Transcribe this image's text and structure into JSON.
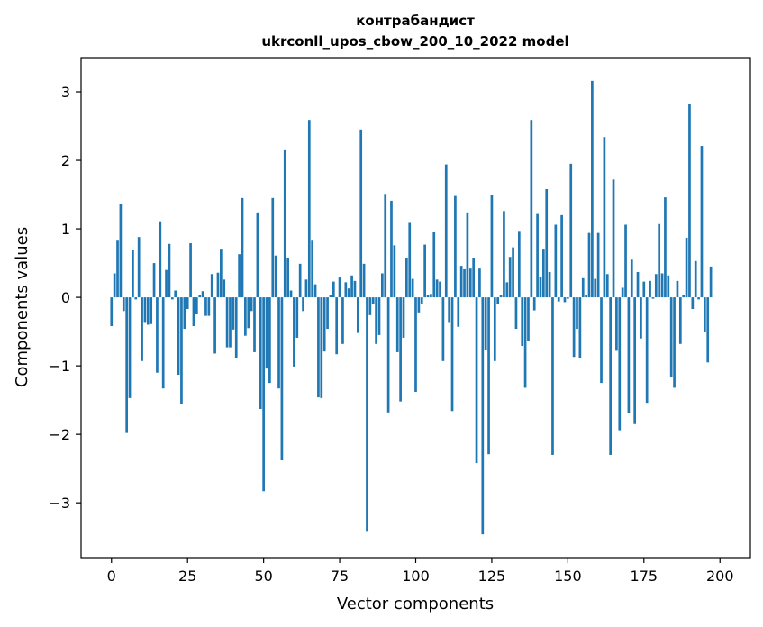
{
  "chart_data": {
    "type": "bar",
    "title": "контрабандист",
    "subtitle": "ukrconll_upos_cbow_200_10_2022 model",
    "xlabel": "Vector components",
    "ylabel": "Components values",
    "xlim": [
      -10,
      210
    ],
    "ylim": [
      -3.8,
      3.5
    ],
    "xticks": [
      0,
      25,
      50,
      75,
      100,
      125,
      150,
      175,
      200
    ],
    "yticks": [
      -3,
      -2,
      -1,
      0,
      1,
      2,
      3
    ],
    "ytick_labels": [
      "−3",
      "−2",
      "−1",
      "0",
      "1",
      "2",
      "3"
    ],
    "grid": false,
    "bar_color": "#1f77b4",
    "values": [
      -0.42,
      0.35,
      0.84,
      1.36,
      -0.2,
      -1.98,
      -1.47,
      0.69,
      -0.03,
      0.88,
      -0.93,
      -0.36,
      -0.4,
      -0.39,
      0.5,
      -1.1,
      1.11,
      -1.33,
      0.4,
      0.78,
      -0.03,
      0.1,
      -1.13,
      -1.56,
      -0.46,
      -0.17,
      0.79,
      -0.42,
      -0.24,
      0.03,
      0.09,
      -0.27,
      -0.27,
      0.34,
      -0.82,
      0.36,
      0.71,
      0.26,
      -0.73,
      -0.73,
      -0.47,
      -0.88,
      0.63,
      1.45,
      -0.56,
      -0.45,
      -0.2,
      -0.8,
      1.24,
      -1.63,
      -2.83,
      -1.04,
      -1.25,
      1.45,
      0.61,
      -1.33,
      -2.38,
      2.16,
      0.58,
      0.1,
      -1.01,
      -0.59,
      0.49,
      -0.2,
      0.26,
      2.59,
      0.84,
      0.19,
      -1.46,
      -1.47,
      -0.79,
      -0.46,
      0.03,
      0.23,
      -0.83,
      0.29,
      -0.68,
      0.22,
      0.13,
      0.32,
      0.24,
      -0.52,
      2.45,
      0.49,
      -3.41,
      -0.26,
      -0.1,
      -0.68,
      -0.55,
      0.35,
      1.51,
      -1.68,
      1.41,
      0.76,
      -0.8,
      -1.52,
      -0.59,
      0.58,
      1.1,
      0.27,
      -1.38,
      -0.22,
      -0.09,
      0.77,
      0.04,
      0.05,
      0.96,
      0.26,
      0.23,
      -0.93,
      1.94,
      -0.36,
      -1.66,
      1.48,
      -0.43,
      0.46,
      0.41,
      1.24,
      0.42,
      0.58,
      -2.42,
      0.42,
      -3.46,
      -0.77,
      -2.29,
      1.49,
      -0.93,
      -0.1,
      0.04,
      1.26,
      0.22,
      0.59,
      0.73,
      -0.46,
      0.97,
      -0.71,
      -1.32,
      -0.64,
      2.59,
      -0.19,
      1.23,
      0.3,
      0.71,
      1.58,
      0.37,
      -2.3,
      1.06,
      -0.06,
      1.2,
      -0.07,
      -0.02,
      1.95,
      -0.87,
      -0.46,
      -0.88,
      0.28,
      0.03,
      0.94,
      3.16,
      0.27,
      0.94,
      -1.25,
      2.34,
      0.34,
      -2.3,
      1.72,
      -0.78,
      -1.94,
      0.14,
      1.06,
      -1.69,
      0.55,
      -1.85,
      0.37,
      -0.6,
      0.23,
      -1.54,
      0.24,
      -0.02,
      0.34,
      1.07,
      0.35,
      1.46,
      0.32,
      -1.16,
      -1.32,
      0.24,
      -0.68,
      0.04,
      0.87,
      2.82,
      -0.17,
      0.53,
      -0.03,
      2.21,
      -0.5,
      -0.95,
      0.45
    ]
  }
}
